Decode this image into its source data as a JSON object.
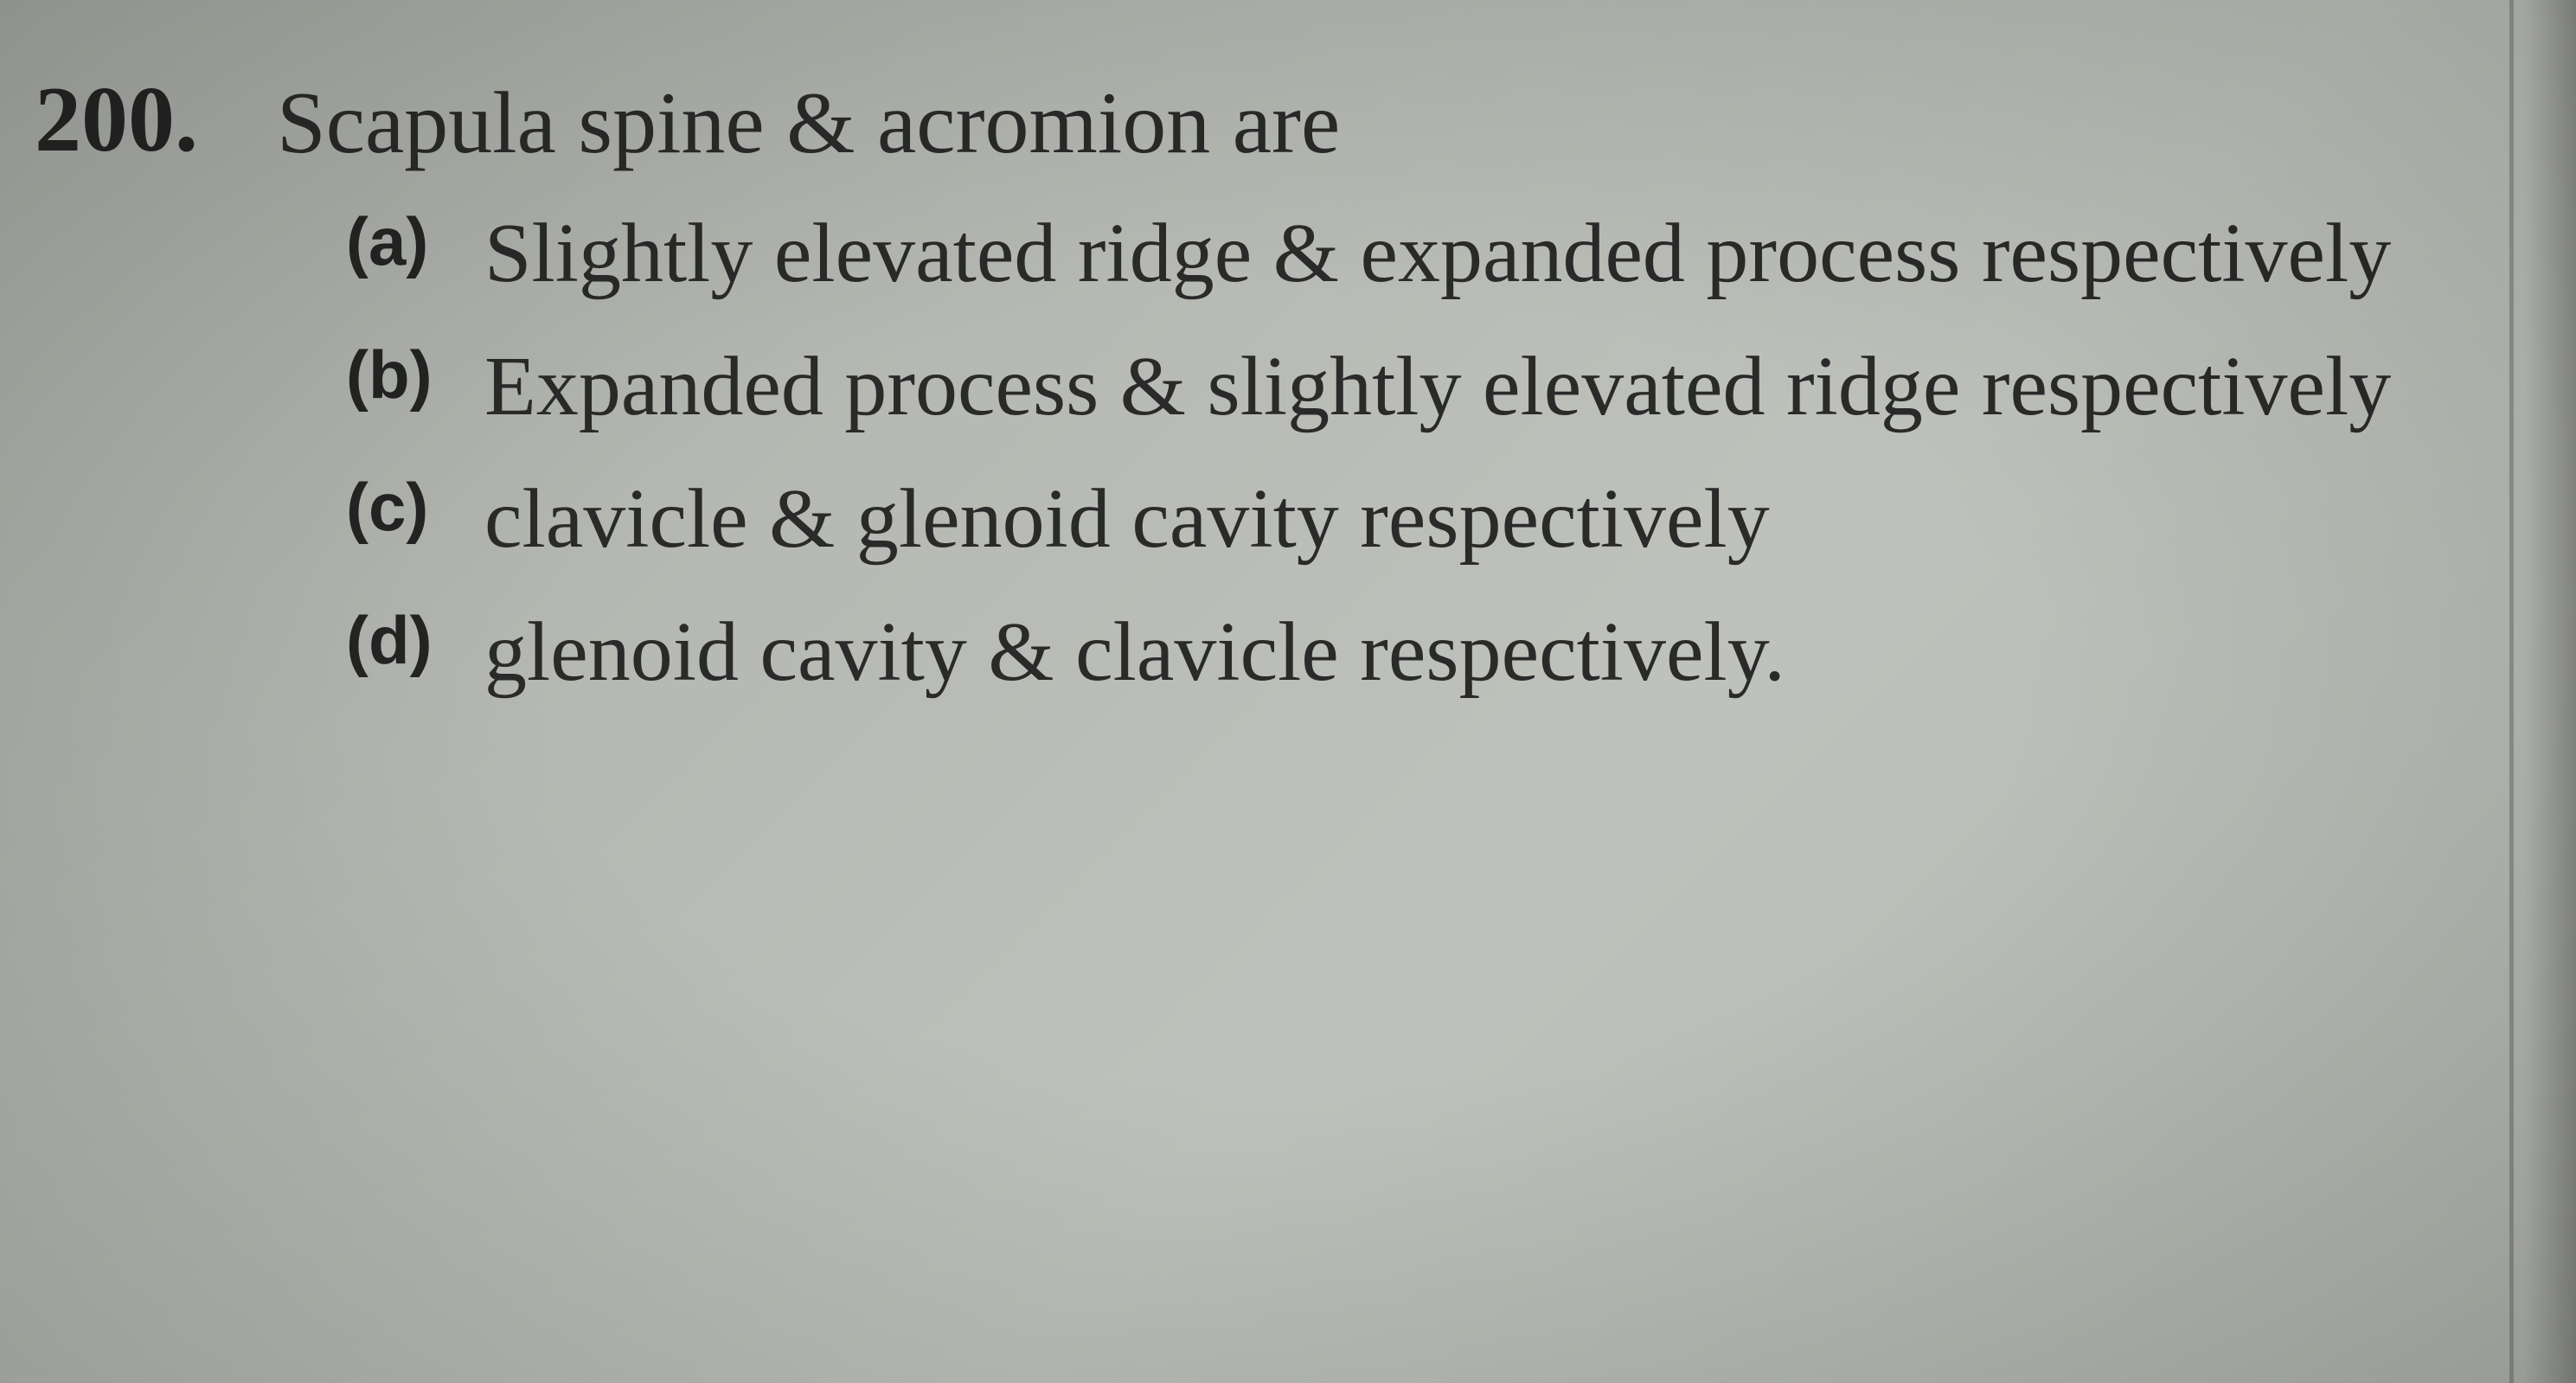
{
  "question": {
    "number": "200.",
    "text": "Scapula spine & acromion are"
  },
  "options": [
    {
      "label": "(a)",
      "text": "Slightly elevated ridge & expanded process respectively"
    },
    {
      "label": "(b)",
      "text": "Expanded process & slightly elevated ridge respectively"
    },
    {
      "label": "(c)",
      "text": "clavicle & glenoid cavity respectively"
    },
    {
      "label": "(d)",
      "text": "glenoid cavity & clavicle respectively."
    }
  ],
  "styling": {
    "background_color": "#b5b8b2",
    "text_color": "#2a2a2a",
    "number_color": "#242424",
    "question_number_fontsize": 108,
    "question_text_fontsize": 102,
    "option_label_fontsize": 78,
    "option_text_fontsize": 98,
    "font_family": "Times New Roman",
    "label_font_family": "Arial",
    "number_fontweight": 700,
    "label_fontweight": 700,
    "text_fontweight": 400
  }
}
